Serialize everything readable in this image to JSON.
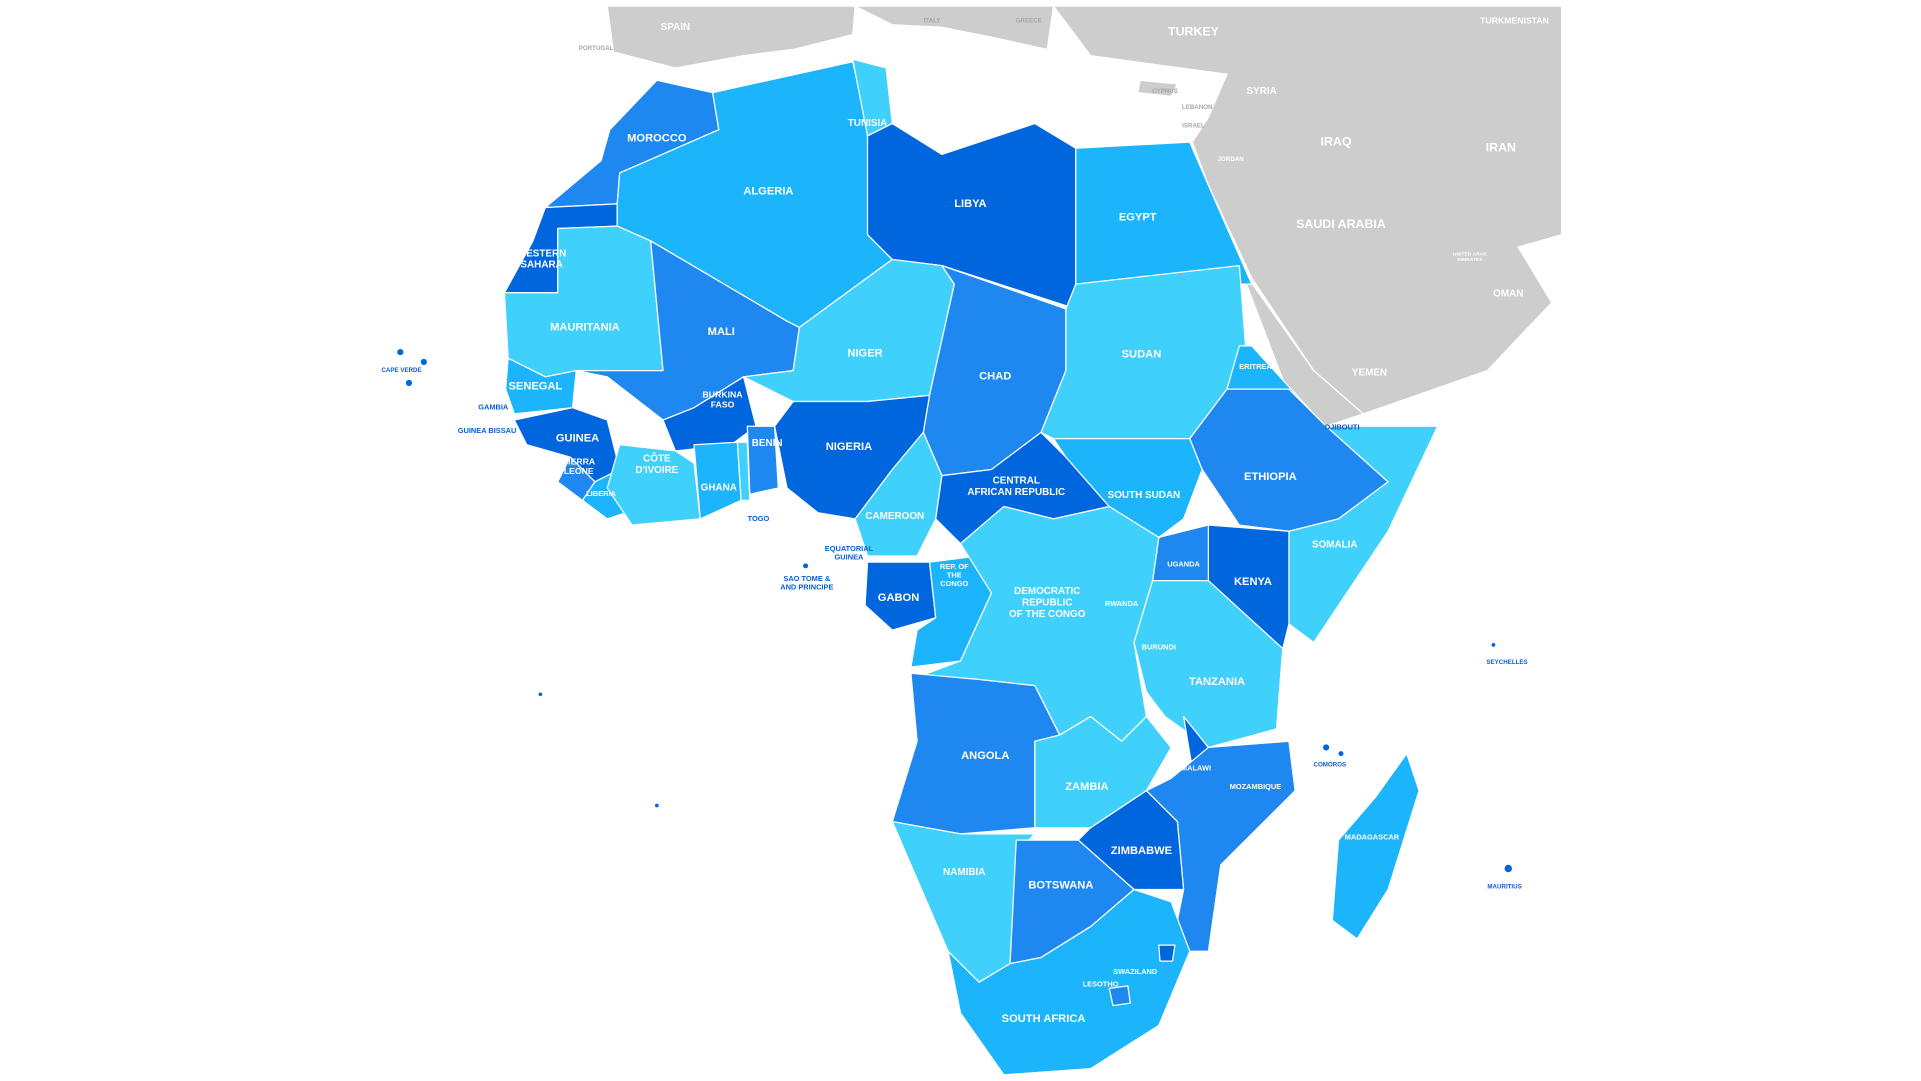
{
  "countries": [
    [
      "MOROCCO"
    ],
    [
      "ALGERIA"
    ],
    [
      "TUNISIA"
    ],
    [
      "LIBYA"
    ],
    [
      "EGYPT"
    ],
    [
      "WESTERN",
      "SAHARA"
    ],
    [
      "MAURITANIA"
    ],
    [
      "MALI"
    ],
    [
      "NIGER"
    ],
    [
      "CHAD"
    ],
    [
      "SUDAN"
    ],
    [
      "SENEGAL"
    ],
    [
      "GAMBIA"
    ],
    [
      "GUINEA BISSAU"
    ],
    [
      "GUINEA"
    ],
    [
      "SIERRA",
      "LEONE"
    ],
    [
      "LIBERIA"
    ],
    [
      "CÔTE",
      "D'IVOIRE"
    ],
    [
      "BURKINA",
      "FASO"
    ],
    [
      "GHANA"
    ],
    [
      "TOGO"
    ],
    [
      "BENIN"
    ],
    [
      "NIGERIA"
    ],
    [
      "CAMEROON"
    ],
    [
      "EQUATORIAL",
      "GUINEA"
    ],
    [
      "SAO TOME &",
      "AND PRINCIPE"
    ],
    [
      "GABON"
    ],
    [
      "REP. OF",
      "THE",
      "CONGO"
    ],
    [
      "CENTRAL",
      "AFRICAN REPUBLIC"
    ],
    [
      "SOUTH SUDAN"
    ],
    [
      "ERITREA"
    ],
    [
      "DJIBOUTI"
    ],
    [
      "ETHIOPIA"
    ],
    [
      "SOMALIA"
    ],
    [
      "UGANDA"
    ],
    [
      "KENYA"
    ],
    [
      "RWANDA"
    ],
    [
      "BURUNDI"
    ],
    [
      "DEMOCRATIC",
      "REPUBLIC",
      "OF THE CONGO"
    ],
    [
      "TANZANIA"
    ],
    [
      "ANGOLA"
    ],
    [
      "ZAMBIA"
    ],
    [
      "MALAWI"
    ],
    [
      "MOZAMBIQUE"
    ],
    [
      "ZIMBABWE"
    ],
    [
      "NAMIBIA"
    ],
    [
      "BOTSWANA"
    ],
    [
      "SOUTH AFRICA"
    ],
    [
      "LESOTHO"
    ],
    [
      "SWAZILAND"
    ],
    [
      "MADAGASCAR"
    ],
    [
      "COMOROS"
    ],
    [
      "SEYCHELLES"
    ],
    [
      "MAURITIUS"
    ],
    [
      "CAPE VERDE"
    ]
  ],
  "neighbors": [
    [
      "SPAIN"
    ],
    [
      "PORTUGAL"
    ],
    [
      "ITALY"
    ],
    [
      "GREECE"
    ],
    [
      "TURKEY"
    ],
    [
      "TURKMENISTAN"
    ],
    [
      "CYPRUS"
    ],
    [
      "LEBANON"
    ],
    [
      "ISRAEL"
    ],
    [
      "SYRIA"
    ],
    [
      "JORDAN"
    ],
    [
      "IRAQ"
    ],
    [
      "IRAN"
    ],
    [
      "SAUDI ARABIA"
    ],
    [
      "UNITED ARAB",
      "EMIRATES"
    ],
    [
      "OMAN"
    ],
    [
      "YEMEN"
    ]
  ]
}
